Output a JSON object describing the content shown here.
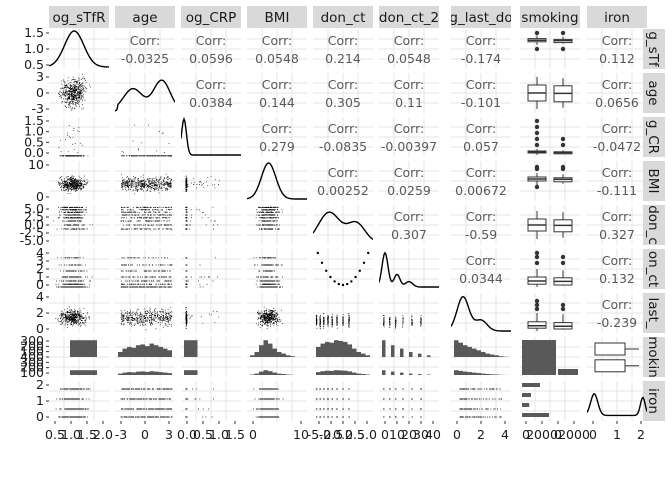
{
  "chart_data": {
    "type": "scatterplot-matrix",
    "variables": [
      "log_sTfR",
      "age",
      "log_CRP",
      "BMI",
      "don_ct",
      "don_ct_2",
      "log_last_don",
      "smoking",
      "iron"
    ],
    "strip_labels": {
      "top": [
        "og_sTfR",
        "age",
        "og_CRP",
        "BMI",
        "don_ct",
        "don_ct_2",
        "g_last_do",
        "smoking",
        "iron"
      ],
      "right": [
        "g_sTf",
        "age",
        "g_CR",
        "BMI",
        "don_c",
        "on_ct",
        "last_",
        "mokin",
        "iron"
      ]
    },
    "corr_label": "Corr:",
    "correlations": [
      {
        "row": 0,
        "col": 1,
        "value": "-0.0325"
      },
      {
        "row": 0,
        "col": 2,
        "value": "0.0596"
      },
      {
        "row": 0,
        "col": 3,
        "value": "0.0548"
      },
      {
        "row": 0,
        "col": 4,
        "value": "0.214"
      },
      {
        "row": 0,
        "col": 5,
        "value": "0.0548"
      },
      {
        "row": 0,
        "col": 6,
        "value": "-0.174"
      },
      {
        "row": 0,
        "col": 8,
        "value": "0.112"
      },
      {
        "row": 1,
        "col": 2,
        "value": "0.0384"
      },
      {
        "row": 1,
        "col": 3,
        "value": "0.144"
      },
      {
        "row": 1,
        "col": 4,
        "value": "0.305"
      },
      {
        "row": 1,
        "col": 5,
        "value": "0.11"
      },
      {
        "row": 1,
        "col": 6,
        "value": "-0.101"
      },
      {
        "row": 1,
        "col": 8,
        "value": "0.0656"
      },
      {
        "row": 2,
        "col": 3,
        "value": "0.279"
      },
      {
        "row": 2,
        "col": 4,
        "value": "-0.0835"
      },
      {
        "row": 2,
        "col": 5,
        "value": "-0.00397"
      },
      {
        "row": 2,
        "col": 6,
        "value": "0.057"
      },
      {
        "row": 2,
        "col": 8,
        "value": "-0.0472"
      },
      {
        "row": 3,
        "col": 4,
        "value": "0.00252"
      },
      {
        "row": 3,
        "col": 5,
        "value": "0.0259"
      },
      {
        "row": 3,
        "col": 6,
        "value": "0.00672"
      },
      {
        "row": 3,
        "col": 8,
        "value": "-0.111"
      },
      {
        "row": 4,
        "col": 5,
        "value": "0.307"
      },
      {
        "row": 4,
        "col": 6,
        "value": "-0.59"
      },
      {
        "row": 4,
        "col": 8,
        "value": "0.327"
      },
      {
        "row": 5,
        "col": 6,
        "value": "0.0344"
      },
      {
        "row": 5,
        "col": 8,
        "value": "0.132"
      },
      {
        "row": 6,
        "col": 8,
        "value": "-0.239"
      }
    ],
    "y_ticks": [
      [
        "0.5",
        "1.0",
        "1.5"
      ],
      [
        "-3",
        "0",
        "3"
      ],
      [
        "0.0",
        "0.5",
        "1.0",
        "1.5"
      ],
      [
        "0",
        "10"
      ],
      [
        "-5.0",
        "-2.5",
        "0.0",
        "2.5",
        "5.0"
      ],
      [
        "0",
        "1",
        "2",
        "3",
        "4"
      ],
      [
        "0",
        "2",
        "4"
      ],
      [
        "100",
        "200",
        "300",
        "400",
        "100",
        "200",
        "300"
      ],
      [
        "0",
        "1",
        "2"
      ]
    ],
    "x_ticks": [
      [
        "0.5",
        "1.0",
        "1.5",
        "2.0"
      ],
      [
        "-3",
        "0",
        "3"
      ],
      [
        "0.0",
        "0.5",
        "1.0",
        "1.5"
      ],
      [
        "0",
        "10"
      ],
      [
        "-5.0",
        "-2.5",
        "0.0",
        "2.5",
        "5.0"
      ],
      [
        "0",
        "10",
        "20",
        "30",
        "40"
      ],
      [
        "0",
        "2",
        "4"
      ],
      [
        "0",
        "2000",
        "0",
        "2000"
      ],
      [
        "0",
        "1",
        "2"
      ]
    ]
  },
  "colors": {
    "panel_bg": "#ffffff",
    "grid": "#e6e6e6",
    "strip_bg": "#d9d9d9",
    "points": "#000000",
    "bars": "#595959"
  }
}
